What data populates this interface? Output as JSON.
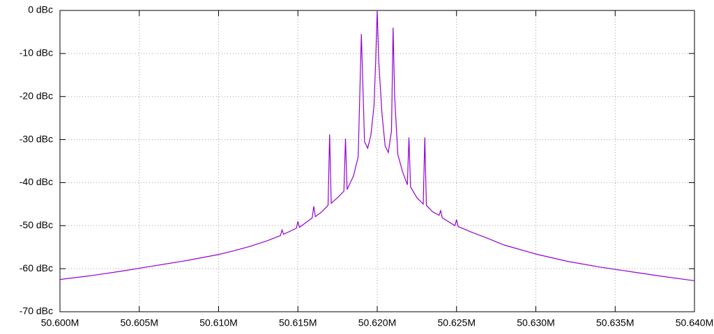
{
  "chart_data": {
    "type": "line",
    "x": [
      50.6,
      50.602,
      50.604,
      50.606,
      50.608,
      50.61,
      50.611,
      50.612,
      50.613,
      50.6139,
      50.614,
      50.6141,
      50.6149,
      50.615,
      50.6151,
      50.6159,
      50.616,
      50.6161,
      50.6165,
      50.6169,
      50.617,
      50.6171,
      50.6175,
      50.6179,
      50.618,
      50.6181,
      50.6185,
      50.6188,
      50.619,
      50.6192,
      50.6194,
      50.6196,
      50.6198,
      50.6199,
      50.62,
      50.6201,
      50.6203,
      50.6205,
      50.6207,
      50.6209,
      50.621,
      50.6211,
      50.6213,
      50.6216,
      50.6219,
      50.622,
      50.6221,
      50.6225,
      50.6229,
      50.623,
      50.6231,
      50.6235,
      50.6239,
      50.624,
      50.6241,
      50.6249,
      50.625,
      50.6251,
      50.626,
      50.627,
      50.628,
      50.63,
      50.632,
      50.634,
      50.636,
      50.638,
      50.64
    ],
    "series": [
      {
        "color": "#9400d3",
        "values": [
          -62.5,
          -61.6,
          -60.5,
          -59.3,
          -58.1,
          -56.7,
          -55.8,
          -54.8,
          -53.6,
          -52.3,
          -51.0,
          -52.0,
          -50.6,
          -49.0,
          -50.4,
          -48.2,
          -45.5,
          -47.9,
          -46.8,
          -45.3,
          -28.8,
          -44.8,
          -43.5,
          -42.0,
          -29.8,
          -41.6,
          -38.5,
          -34.0,
          -5.5,
          -30.5,
          -32.0,
          -29.0,
          -22.0,
          -12.0,
          0.0,
          -12.0,
          -24.0,
          -31.5,
          -33.0,
          -28.0,
          -4.0,
          -20.0,
          -33.5,
          -37.5,
          -40.5,
          -29.5,
          -41.0,
          -43.5,
          -45.0,
          -29.5,
          -45.3,
          -46.8,
          -47.6,
          -46.5,
          -48.2,
          -50.0,
          -48.6,
          -50.2,
          -51.6,
          -53.0,
          -54.5,
          -56.6,
          -58.3,
          -59.6,
          -60.7,
          -61.8,
          -62.8
        ]
      }
    ],
    "xlim": [
      50.6,
      50.64
    ],
    "xticks": [
      {
        "value": 50.6,
        "label": "50.600M"
      },
      {
        "value": 50.605,
        "label": "50.605M"
      },
      {
        "value": 50.61,
        "label": "50.610M"
      },
      {
        "value": 50.615,
        "label": "50.615M"
      },
      {
        "value": 50.62,
        "label": "50.620M"
      },
      {
        "value": 50.625,
        "label": "50.625M"
      },
      {
        "value": 50.63,
        "label": "50.630M"
      },
      {
        "value": 50.635,
        "label": "50.635M"
      },
      {
        "value": 50.64,
        "label": "50.640M"
      }
    ],
    "ylim": [
      -70,
      0
    ],
    "yticks": [
      {
        "value": -70,
        "label": "-70 dBc"
      },
      {
        "value": -60,
        "label": "-60 dBc"
      },
      {
        "value": -50,
        "label": "-50 dBc"
      },
      {
        "value": -40,
        "label": "-40 dBc"
      },
      {
        "value": -30,
        "label": "-30 dBc"
      },
      {
        "value": -20,
        "label": "-20 dBc"
      },
      {
        "value": -10,
        "label": "-10 dBc"
      },
      {
        "value": 0,
        "label": "0 dBc"
      }
    ],
    "grid": true
  }
}
